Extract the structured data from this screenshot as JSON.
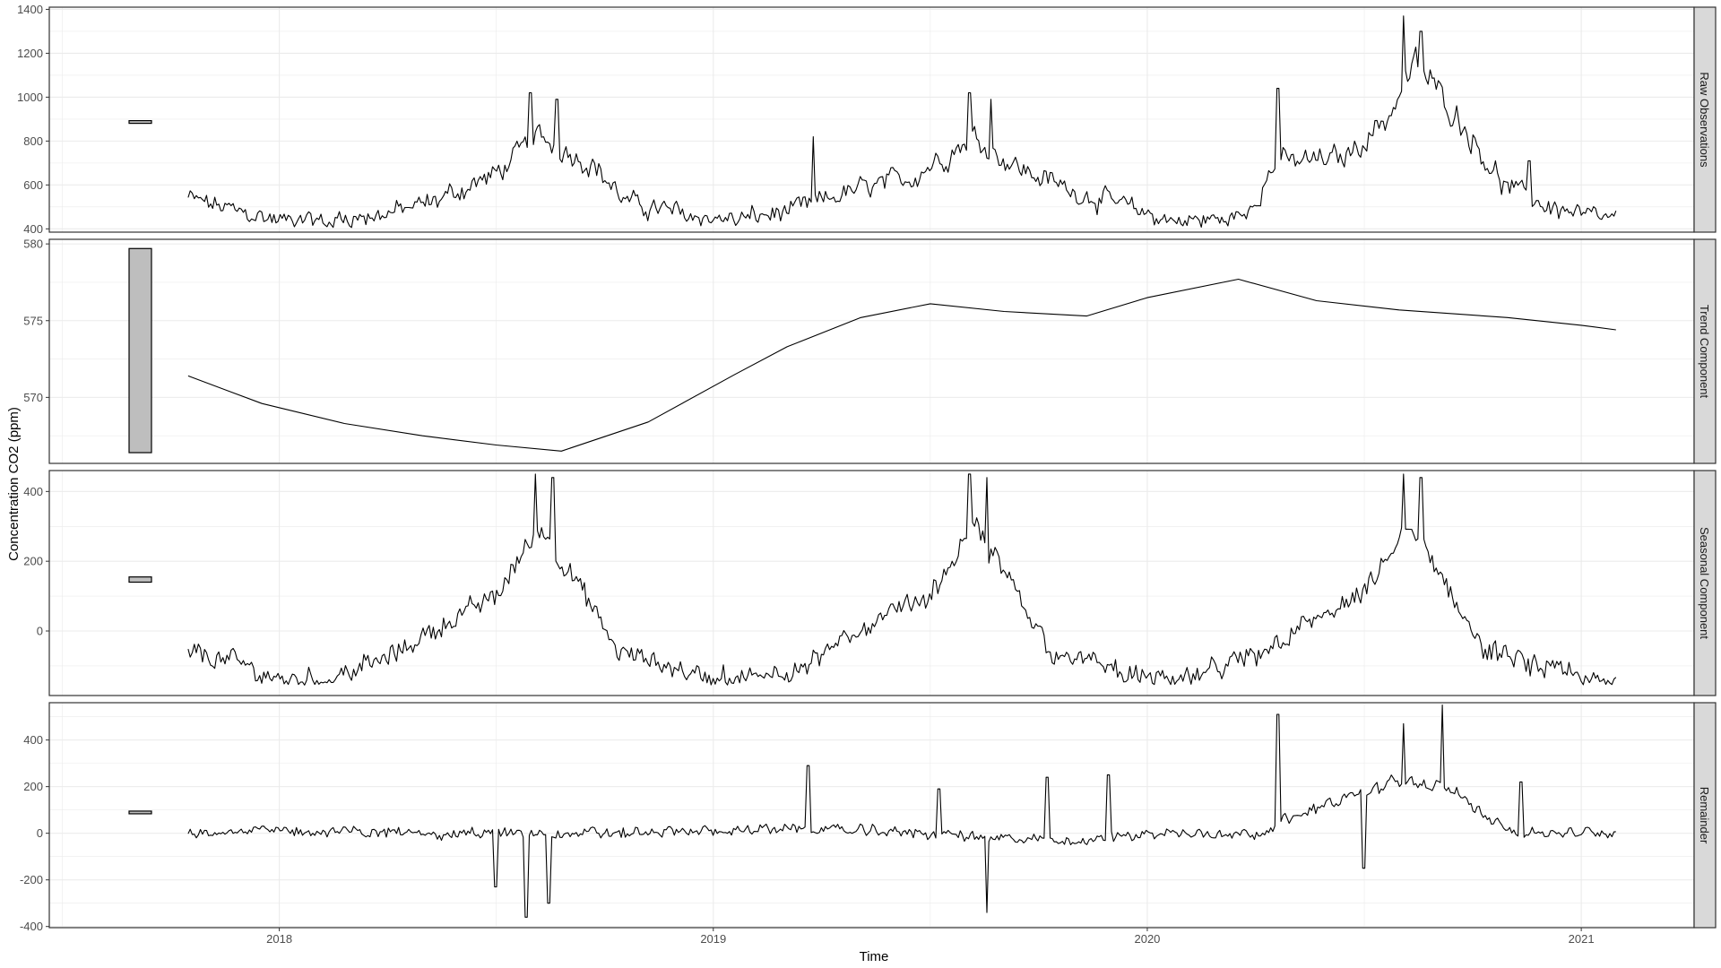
{
  "chart_data": {
    "type": "line",
    "xlabel": "Time",
    "ylabel": "Concentration CO2 (ppm)",
    "x_ticks": [
      "2018",
      "2019",
      "2020",
      "2021"
    ],
    "x_tick_values": [
      2018.0,
      2019.0,
      2020.0,
      2021.0
    ],
    "xlim": [
      2017.47,
      2021.26
    ],
    "x_start": 2017.79,
    "x_end": 2021.08,
    "grid": true,
    "colors": {
      "line": "#000000",
      "grid": "#ebebeb",
      "strip": "#d9d9d9",
      "panel_border": "#333333",
      "range_bar": "#bebebe"
    },
    "panels": [
      {
        "name": "Raw Observations",
        "ylim": [
          385,
          1410
        ],
        "yticks": [
          400,
          600,
          800,
          1000,
          1200,
          1400
        ],
        "range_bar": [
          883,
          893
        ],
        "trend_points": [
          [
            2017.79,
            540
          ],
          [
            2017.9,
            480
          ],
          [
            2018.0,
            440
          ],
          [
            2018.1,
            430
          ],
          [
            2018.25,
            470
          ],
          [
            2018.35,
            520
          ],
          [
            2018.5,
            650
          ],
          [
            2018.6,
            820
          ],
          [
            2018.72,
            700
          ],
          [
            2018.8,
            520
          ],
          [
            2018.95,
            460
          ],
          [
            2019.05,
            440
          ],
          [
            2019.18,
            480
          ],
          [
            2019.3,
            560
          ],
          [
            2019.45,
            630
          ],
          [
            2019.6,
            820
          ],
          [
            2019.7,
            680
          ],
          [
            2019.82,
            580
          ],
          [
            2019.95,
            500
          ],
          [
            2020.05,
            440
          ],
          [
            2020.15,
            440
          ],
          [
            2020.22,
            460
          ],
          [
            2020.3,
            700
          ],
          [
            2020.45,
            720
          ],
          [
            2020.55,
            900
          ],
          [
            2020.62,
            1150
          ],
          [
            2020.72,
            900
          ],
          [
            2020.82,
            600
          ],
          [
            2020.9,
            520
          ],
          [
            2021.0,
            460
          ],
          [
            2021.08,
            440
          ]
        ],
        "noise": 60,
        "spikes": [
          [
            2018.58,
            1020
          ],
          [
            2018.64,
            990
          ],
          [
            2019.59,
            1020
          ],
          [
            2019.64,
            990
          ],
          [
            2020.3,
            1040
          ],
          [
            2020.59,
            1370
          ],
          [
            2020.63,
            1300
          ],
          [
            2020.88,
            710
          ],
          [
            2019.23,
            820
          ]
        ],
        "floor": 405
      },
      {
        "name": "Trend Component",
        "ylim": [
          565.7,
          580.3
        ],
        "yticks": [
          570,
          575,
          580
        ],
        "range_bar": [
          566.4,
          579.7
        ],
        "line_points": [
          [
            2017.79,
            571.4
          ],
          [
            2017.96,
            569.6
          ],
          [
            2018.15,
            568.3
          ],
          [
            2018.33,
            567.5
          ],
          [
            2018.5,
            566.9
          ],
          [
            2018.65,
            566.5
          ],
          [
            2018.85,
            568.4
          ],
          [
            2019.05,
            571.5
          ],
          [
            2019.17,
            573.3
          ],
          [
            2019.34,
            575.2
          ],
          [
            2019.5,
            576.1
          ],
          [
            2019.67,
            575.6
          ],
          [
            2019.86,
            575.3
          ],
          [
            2020.0,
            576.5
          ],
          [
            2020.21,
            577.7
          ],
          [
            2020.39,
            576.3
          ],
          [
            2020.58,
            575.7
          ],
          [
            2020.83,
            575.2
          ],
          [
            2021.0,
            574.7
          ],
          [
            2021.08,
            574.4
          ]
        ]
      },
      {
        "name": "Seasonal Component",
        "ylim": [
          -185,
          460
        ],
        "yticks": [
          0,
          200,
          400
        ],
        "range_bar": [
          140,
          155
        ],
        "trend_points": [
          [
            2017.79,
            -60
          ],
          [
            2017.9,
            -90
          ],
          [
            2018.0,
            -140
          ],
          [
            2018.1,
            -140
          ],
          [
            2018.25,
            -80
          ],
          [
            2018.35,
            0
          ],
          [
            2018.5,
            100
          ],
          [
            2018.6,
            300
          ],
          [
            2018.68,
            150
          ],
          [
            2018.78,
            -60
          ],
          [
            2018.9,
            -100
          ],
          [
            2019.0,
            -140
          ],
          [
            2019.1,
            -140
          ],
          [
            2019.25,
            -70
          ],
          [
            2019.35,
            10
          ],
          [
            2019.5,
            100
          ],
          [
            2019.6,
            300
          ],
          [
            2019.68,
            150
          ],
          [
            2019.78,
            -60
          ],
          [
            2019.9,
            -100
          ],
          [
            2020.0,
            -140
          ],
          [
            2020.1,
            -140
          ],
          [
            2020.25,
            -70
          ],
          [
            2020.35,
            10
          ],
          [
            2020.5,
            100
          ],
          [
            2020.6,
            300
          ],
          [
            2020.68,
            150
          ],
          [
            2020.78,
            -60
          ],
          [
            2020.9,
            -100
          ],
          [
            2021.0,
            -140
          ],
          [
            2021.08,
            -145
          ]
        ],
        "noise": 55,
        "spikes": [
          [
            2018.59,
            450
          ],
          [
            2018.63,
            440
          ],
          [
            2019.59,
            450
          ],
          [
            2019.63,
            440
          ],
          [
            2020.59,
            450
          ],
          [
            2020.63,
            440
          ]
        ],
        "floor": -155
      },
      {
        "name": "Remainder",
        "ylim": [
          -405,
          560
        ],
        "yticks": [
          -400,
          -200,
          0,
          200,
          400
        ],
        "range_bar": [
          85,
          95
        ],
        "trend_points": [
          [
            2017.79,
            10
          ],
          [
            2018.0,
            10
          ],
          [
            2018.4,
            0
          ],
          [
            2018.8,
            0
          ],
          [
            2019.2,
            20
          ],
          [
            2019.5,
            0
          ],
          [
            2019.8,
            -40
          ],
          [
            2020.0,
            0
          ],
          [
            2020.25,
            0
          ],
          [
            2020.4,
            120
          ],
          [
            2020.6,
            230
          ],
          [
            2020.7,
            180
          ],
          [
            2020.85,
            0
          ],
          [
            2021.08,
            0
          ]
        ],
        "noise": 45,
        "spikes": [
          [
            2018.5,
            -230
          ],
          [
            2018.57,
            -360
          ],
          [
            2018.62,
            -300
          ],
          [
            2019.22,
            290
          ],
          [
            2019.52,
            190
          ],
          [
            2019.63,
            -340
          ],
          [
            2019.77,
            -270
          ],
          [
            2019.77,
            240
          ],
          [
            2019.91,
            250
          ],
          [
            2020.3,
            510
          ],
          [
            2020.59,
            470
          ],
          [
            2020.68,
            550
          ],
          [
            2020.5,
            -150
          ],
          [
            2020.86,
            220
          ]
        ],
        "floor": -380
      }
    ]
  }
}
